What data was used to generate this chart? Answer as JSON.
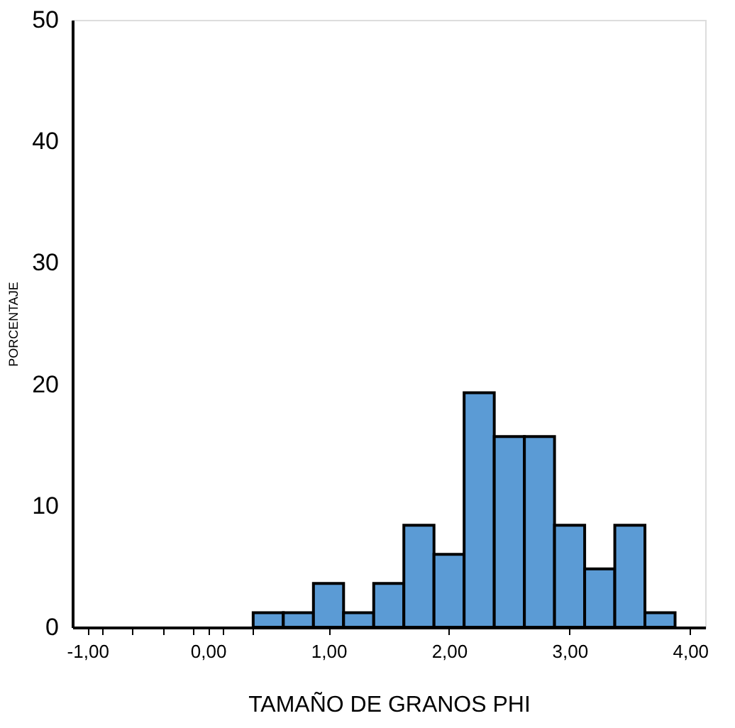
{
  "chart_data": {
    "type": "histogram",
    "xlabel": "TAMAÑO  DE GRANOS PHI",
    "ylabel": "PORCENTAJE",
    "bins": [
      0.375,
      0.625,
      0.875,
      1.125,
      1.375,
      1.625,
      1.875,
      2.125,
      2.375,
      2.625,
      2.875,
      3.125,
      3.375,
      3.625,
      3.875
    ],
    "values": [
      1.2,
      1.2,
      3.6,
      1.2,
      3.6,
      8.4,
      6.0,
      19.3,
      15.7,
      15.7,
      8.4,
      4.8,
      8.4,
      1.2
    ],
    "color": "#5b9bd5",
    "xlim": [
      -1.125,
      4.125
    ],
    "xticks": [
      {
        "value": -1,
        "label": "-1,00"
      },
      {
        "value": -0.875,
        "label": null
      },
      {
        "value": -0.625,
        "label": null
      },
      {
        "value": -0.375,
        "label": null
      },
      {
        "value": -0.125,
        "label": null
      },
      {
        "value": 0,
        "label": "0,00"
      },
      {
        "value": 0.125,
        "label": null
      },
      {
        "value": 0.375,
        "label": null
      },
      {
        "value": 1,
        "label": "1,00"
      },
      {
        "value": 2,
        "label": "2,00"
      },
      {
        "value": 3,
        "label": "3,00"
      },
      {
        "value": 4,
        "label": "4,00"
      }
    ],
    "ylim": [
      0,
      50
    ],
    "yticks": [
      0,
      10,
      20,
      30,
      40,
      50
    ],
    "grid": false
  }
}
